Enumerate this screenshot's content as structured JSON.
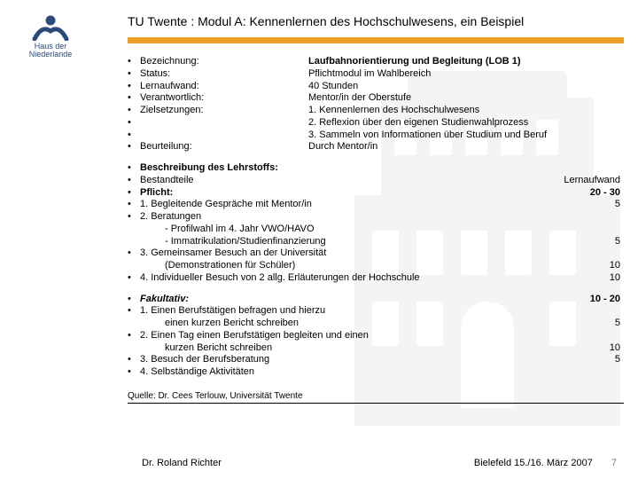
{
  "logo": {
    "line1": "Haus der",
    "line2": "Niederlande"
  },
  "title": "TU Twente : Modul A: Kennenlernen des Hochschulwesens, ein Beispiel",
  "accent_color": "#f0a028",
  "meta": [
    {
      "label": "Bezeichnung:",
      "value": "Laufbahnorientierung und Begleitung (LOB 1)",
      "bold": true
    },
    {
      "label": "Status:",
      "value": "Pflichtmodul im Wahlbereich"
    },
    {
      "label": "Lernaufwand:",
      "value": "40 Stunden"
    },
    {
      "label": "Verantwortlich:",
      "value": "Mentor/in der Oberstufe"
    },
    {
      "label": "Zielsetzungen:",
      "value": "1. Kennenlernen des Hochschulwesens"
    },
    {
      "label": "",
      "value": "2. Reflexion über den eigenen Studienwahlprozess"
    },
    {
      "label": "",
      "value": "3. Sammeln von Informationen über Studium und Beruf"
    },
    {
      "label": "Beurteilung:",
      "value": "Durch Mentor/in"
    }
  ],
  "curriculum_header": "Beschreibung des Lehrstoffs:",
  "curriculum_col1": "Bestandteile",
  "curriculum_col2": "Lernaufwand",
  "pflicht_label": "Pflicht:",
  "pflicht_hours": "20 - 30",
  "pflicht_items": [
    {
      "text": "1. Begleitende Gespräche mit Mentor/in",
      "hours": "5"
    },
    {
      "text": "2. Beratungen",
      "hours": ""
    },
    {
      "text": "- Profilwahl im 4. Jahr VWO/HAVO",
      "hours": "",
      "indent": true
    },
    {
      "text": "- Immatrikulation/Studienfinanzierung",
      "hours": "5",
      "indent": true
    },
    {
      "text": "3. Gemeinsamer Besuch an der Universität",
      "hours": ""
    },
    {
      "text": "(Demonstrationen für Schüler)",
      "hours": "10",
      "indent": true
    },
    {
      "text": "4. Individueller Besuch von 2 allg. Erläuterungen der Hochschule",
      "hours": "10"
    }
  ],
  "fakultativ_label": "Fakultativ:",
  "fakultativ_hours": "10 - 20",
  "fakultativ_items": [
    {
      "text": "1. Einen Berufstätigen befragen und hierzu",
      "hours": ""
    },
    {
      "text": "einen kurzen Bericht schreiben",
      "hours": "5",
      "indent": true
    },
    {
      "text": "2. Einen Tag einen Berufstätigen begleiten und einen",
      "hours": ""
    },
    {
      "text": "kurzen Bericht schreiben",
      "hours": "10",
      "indent": true
    },
    {
      "text": "3. Besuch der Berufsberatung",
      "hours": "5"
    },
    {
      "text": "4. Selbständige Aktivitäten",
      "hours": ""
    }
  ],
  "source": "Quelle: Dr. Cees Terlouw, Universität Twente",
  "footer": {
    "author": "Dr. Roland Richter",
    "event": "Bielefeld 15./16. März 2007",
    "page": "7"
  }
}
